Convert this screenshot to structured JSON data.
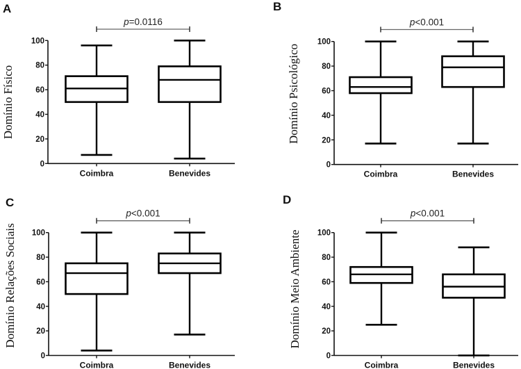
{
  "chart_data": [
    {
      "type": "box",
      "panel": "A",
      "ylabel": "Domínio Físico",
      "xlabel": "",
      "categories": [
        "Coimbra",
        "Benevides"
      ],
      "ylim": [
        0,
        100
      ],
      "yticks": [
        0,
        20,
        40,
        60,
        80,
        100
      ],
      "series": [
        {
          "name": "Coimbra",
          "min": 7,
          "q1": 50,
          "median": 61,
          "q3": 71,
          "max": 96
        },
        {
          "name": "Benevides",
          "min": 4,
          "q1": 50,
          "median": 68,
          "q3": 79,
          "max": 100
        }
      ],
      "annotation": {
        "p_symbol": "p",
        "text": "=0.0116",
        "between": [
          "Coimbra",
          "Benevides"
        ]
      }
    },
    {
      "type": "box",
      "panel": "B",
      "ylabel": "Domínio Psicológico",
      "xlabel": "",
      "categories": [
        "Coimbra",
        "Benevides"
      ],
      "ylim": [
        0,
        100
      ],
      "yticks": [
        0,
        20,
        40,
        60,
        80,
        100
      ],
      "series": [
        {
          "name": "Coimbra",
          "min": 17,
          "q1": 58,
          "median": 63,
          "q3": 71,
          "max": 100
        },
        {
          "name": "Benevides",
          "min": 17,
          "q1": 63,
          "median": 79,
          "q3": 88,
          "max": 100
        }
      ],
      "annotation": {
        "p_symbol": "p",
        "text": "<0.001",
        "between": [
          "Coimbra",
          "Benevides"
        ]
      }
    },
    {
      "type": "box",
      "panel": "C",
      "ylabel": "Domínio Relações Sociais",
      "xlabel": "",
      "categories": [
        "Coimbra",
        "Benevides"
      ],
      "ylim": [
        0,
        100
      ],
      "yticks": [
        0,
        20,
        40,
        60,
        80,
        100
      ],
      "series": [
        {
          "name": "Coimbra",
          "min": 4,
          "q1": 50,
          "median": 67,
          "q3": 75,
          "max": 100
        },
        {
          "name": "Benevides",
          "min": 17,
          "q1": 67,
          "median": 75,
          "q3": 83,
          "max": 100
        }
      ],
      "annotation": {
        "p_symbol": "p",
        "text": "<0.001",
        "between": [
          "Coimbra",
          "Benevides"
        ]
      }
    },
    {
      "type": "box",
      "panel": "D",
      "ylabel": "Domínio Meio Ambiente",
      "xlabel": "",
      "categories": [
        "Coimbra",
        "Benevides"
      ],
      "ylim": [
        0,
        100
      ],
      "yticks": [
        0,
        20,
        40,
        60,
        80,
        100
      ],
      "series": [
        {
          "name": "Coimbra",
          "min": 25,
          "q1": 59,
          "median": 66,
          "q3": 72,
          "max": 100
        },
        {
          "name": "Benevides",
          "min": 0,
          "q1": 47,
          "median": 56,
          "q3": 66,
          "max": 88
        }
      ],
      "annotation": {
        "p_symbol": "p",
        "text": "<0.001",
        "between": [
          "Coimbra",
          "Benevides"
        ]
      }
    }
  ]
}
